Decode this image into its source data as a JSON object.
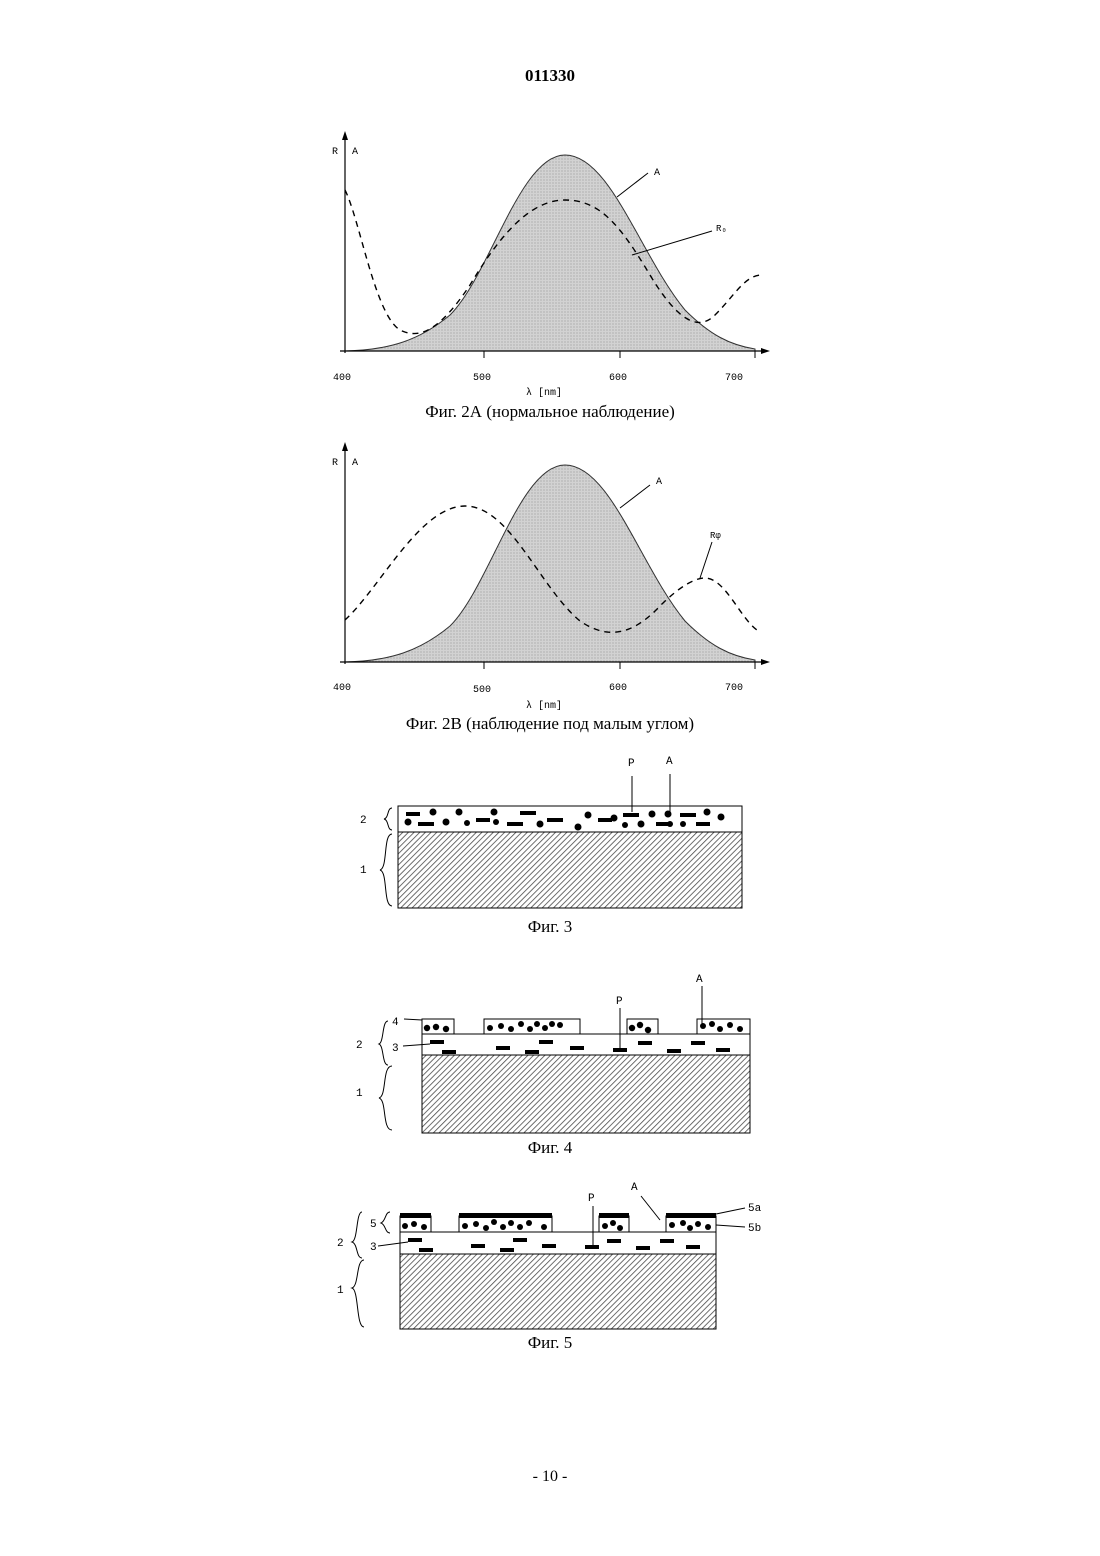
{
  "header": {
    "doc_number": "011330"
  },
  "fig2a": {
    "caption": "Фиг. 2А (нормальное наблюдение)",
    "y_axis_labels": [
      "R",
      "A"
    ],
    "x_ticks": [
      "400",
      "500",
      "600",
      "700"
    ],
    "x_label": "λ [nm]",
    "curve_labels": {
      "absorption": "A",
      "reflection": "R₀"
    }
  },
  "fig2b": {
    "caption": "Фиг. 2В (наблюдение под малым углом)",
    "y_axis_labels": [
      "R",
      "A"
    ],
    "x_ticks": [
      "400",
      "500",
      "600",
      "700"
    ],
    "x_label": "λ [nm]",
    "curve_labels": {
      "absorption": "A",
      "reflection": "Rφ"
    }
  },
  "fig3": {
    "caption": "Фиг. 3",
    "labels": {
      "pigment": "P",
      "absorber": "A",
      "layer2": "2",
      "layer1": "1"
    }
  },
  "fig4": {
    "caption": "Фиг. 4",
    "labels": {
      "layer4": "4",
      "layer3": "3",
      "layer2": "2",
      "layer1": "1",
      "pigment": "P",
      "absorber": "A"
    }
  },
  "fig5": {
    "caption": "Фиг. 5",
    "labels": {
      "layer5": "5",
      "layer5a": "5a",
      "layer5b": "5b",
      "layer3": "3",
      "layer2": "2",
      "layer1": "1",
      "pigment": "P",
      "absorber": "A"
    }
  },
  "footer": {
    "page_number": "- 10 -"
  }
}
